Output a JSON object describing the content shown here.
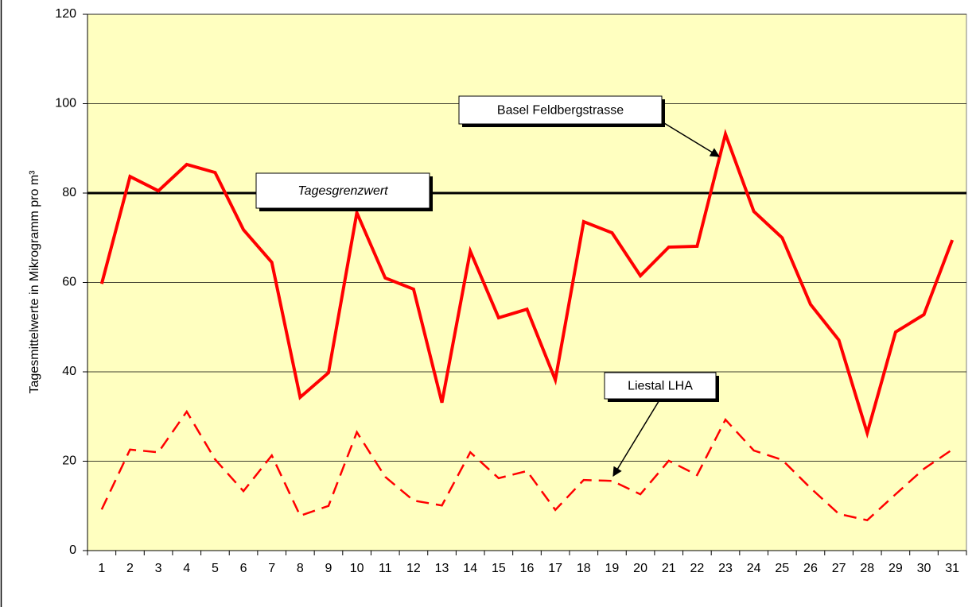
{
  "chart_data": {
    "type": "line",
    "ylabel": "Tagesmittelwerte in Mikrogramm pro m³",
    "categories": [
      "1",
      "2",
      "3",
      "4",
      "5",
      "6",
      "7",
      "8",
      "9",
      "10",
      "11",
      "12",
      "13",
      "14",
      "15",
      "16",
      "17",
      "18",
      "19",
      "20",
      "21",
      "22",
      "23",
      "24",
      "25",
      "26",
      "27",
      "28",
      "29",
      "30",
      "31"
    ],
    "series": [
      {
        "name": "Basel Feldbergstrasse",
        "color": "#ff0000",
        "line_style": "solid",
        "values": [
          59.7,
          83.7,
          80.5,
          86.4,
          84.6,
          71.8,
          64.5,
          34.3,
          39.8,
          75.6,
          61,
          58.5,
          33.1,
          67,
          52.1,
          54,
          38.2,
          73.6,
          71.1,
          61.5,
          67.9,
          68.1,
          93.2,
          75.9,
          70,
          55.1,
          47.1,
          26.3,
          48.9,
          52.8,
          69.5
        ]
      },
      {
        "name": "Liestal LHA",
        "color": "#ff0000",
        "line_style": "dashed",
        "values": [
          9.2,
          22.6,
          22,
          31.1,
          20.4,
          13.3,
          21.3,
          7.8,
          10,
          26.5,
          16.5,
          11.2,
          10.1,
          22,
          16.2,
          17.8,
          9.1,
          15.8,
          15.6,
          12.6,
          20.1,
          16.9,
          29.3,
          22.4,
          20.3,
          14,
          8.2,
          6.8,
          12.6,
          18.3,
          22.6
        ]
      }
    ],
    "threshold": {
      "value": 80,
      "label": "Tagesgrenzwert",
      "color": "#000000"
    },
    "ylim": [
      0,
      120
    ],
    "yticks": [
      0,
      20,
      40,
      60,
      80,
      100,
      120
    ],
    "grid": true,
    "plot_background": "#ffffc0"
  }
}
